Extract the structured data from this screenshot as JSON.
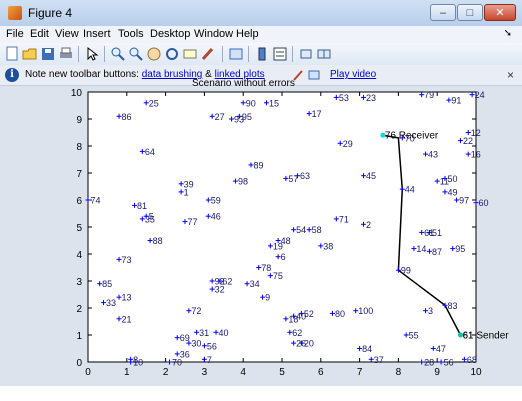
{
  "window": {
    "title": "Figure 4",
    "min_glyph": "–",
    "max_glyph": "□",
    "close_glyph": "✕"
  },
  "menu": [
    "File",
    "Edit",
    "View",
    "Insert",
    "Tools",
    "Desktop",
    "Window",
    "Help"
  ],
  "menu_arrow": "➘",
  "toolbar_icons": [
    "new-figure-icon",
    "open-icon",
    "save-icon",
    "print-icon",
    "pointer-icon",
    "zoom-in-icon",
    "zoom-out-icon",
    "pan-icon",
    "rotate-icon",
    "data-cursor-icon",
    "brush-icon",
    "link-plot-icon",
    "colorbar-icon",
    "legend-icon",
    "hide-plot-tools-icon",
    "show-plot-tools-icon"
  ],
  "notebar": {
    "prefix": "Note new toolbar buttons:",
    "link1": "data brushing",
    "amp": "&",
    "link2": "linked plots",
    "link3": "Play video",
    "close": "×"
  },
  "plot_title": "Scenario without errors",
  "chart_data": {
    "type": "scatter",
    "xlim": [
      0,
      10
    ],
    "ylim": [
      0,
      10
    ],
    "xticks": [
      "0",
      "1",
      "2",
      "3",
      "4",
      "5",
      "6",
      "7",
      "8",
      "9",
      "10"
    ],
    "yticks": [
      "0",
      "1",
      "2",
      "3",
      "4",
      "5",
      "6",
      "7",
      "8",
      "9",
      "10"
    ],
    "grid": false,
    "marker_color": "#0000ff",
    "nodes": [
      {
        "id": "24",
        "x": 9.9,
        "y": 9.9
      },
      {
        "id": "79",
        "x": 8.6,
        "y": 9.9
      },
      {
        "id": "91",
        "x": 9.3,
        "y": 9.7
      },
      {
        "id": "23",
        "x": 7.1,
        "y": 9.8
      },
      {
        "id": "53",
        "x": 6.4,
        "y": 9.8
      },
      {
        "id": "25",
        "x": 1.5,
        "y": 9.6
      },
      {
        "id": "90",
        "x": 4.0,
        "y": 9.6
      },
      {
        "id": "15",
        "x": 4.6,
        "y": 9.6
      },
      {
        "id": "86",
        "x": 0.8,
        "y": 9.1
      },
      {
        "id": "27",
        "x": 3.2,
        "y": 9.1
      },
      {
        "id": "95",
        "x": 3.9,
        "y": 9.1
      },
      {
        "id": "93",
        "x": 3.7,
        "y": 9.0
      },
      {
        "id": "17",
        "x": 5.7,
        "y": 9.2
      },
      {
        "id": "12",
        "x": 9.8,
        "y": 8.5
      },
      {
        "id": "70",
        "x": 8.1,
        "y": 8.3
      },
      {
        "id": "22",
        "x": 9.6,
        "y": 8.2
      },
      {
        "id": "29",
        "x": 6.5,
        "y": 8.1
      },
      {
        "id": "64",
        "x": 1.4,
        "y": 7.8
      },
      {
        "id": "43",
        "x": 8.7,
        "y": 7.7
      },
      {
        "id": "16",
        "x": 9.8,
        "y": 7.7
      },
      {
        "id": "89",
        "x": 4.2,
        "y": 7.3
      },
      {
        "id": "45",
        "x": 7.1,
        "y": 6.9
      },
      {
        "id": "57",
        "x": 5.1,
        "y": 6.8
      },
      {
        "id": "63",
        "x": 5.4,
        "y": 6.9
      },
      {
        "id": "98",
        "x": 3.8,
        "y": 6.7
      },
      {
        "id": "50",
        "x": 9.2,
        "y": 6.8
      },
      {
        "id": "11",
        "x": 9.0,
        "y": 6.7
      },
      {
        "id": "39",
        "x": 2.4,
        "y": 6.6
      },
      {
        "id": "1",
        "x": 2.4,
        "y": 6.3
      },
      {
        "id": "44",
        "x": 8.1,
        "y": 6.4
      },
      {
        "id": "49",
        "x": 9.2,
        "y": 6.3
      },
      {
        "id": "97",
        "x": 9.5,
        "y": 6.0
      },
      {
        "id": "60",
        "x": 10.0,
        "y": 5.9
      },
      {
        "id": "74",
        "x": 0.0,
        "y": 6.0
      },
      {
        "id": "81",
        "x": 1.2,
        "y": 5.8
      },
      {
        "id": "59",
        "x": 3.1,
        "y": 6.0
      },
      {
        "id": "35",
        "x": 1.4,
        "y": 5.3
      },
      {
        "id": "5",
        "x": 1.5,
        "y": 5.4
      },
      {
        "id": "77",
        "x": 2.5,
        "y": 5.2
      },
      {
        "id": "46",
        "x": 3.1,
        "y": 5.4
      },
      {
        "id": "71",
        "x": 6.4,
        "y": 5.3
      },
      {
        "id": "2",
        "x": 7.1,
        "y": 5.1
      },
      {
        "id": "54",
        "x": 5.3,
        "y": 4.9
      },
      {
        "id": "58",
        "x": 5.7,
        "y": 4.9
      },
      {
        "id": "61",
        "x": 8.6,
        "y": 4.8
      },
      {
        "id": "51",
        "x": 8.8,
        "y": 4.8
      },
      {
        "id": "88",
        "x": 1.6,
        "y": 4.5
      },
      {
        "id": "48",
        "x": 4.9,
        "y": 4.5
      },
      {
        "id": "19",
        "x": 4.7,
        "y": 4.3
      },
      {
        "id": "38",
        "x": 6.0,
        "y": 4.3
      },
      {
        "id": "14",
        "x": 8.4,
        "y": 4.2
      },
      {
        "id": "87",
        "x": 8.8,
        "y": 4.1
      },
      {
        "id": "95b",
        "label": "95",
        "x": 9.4,
        "y": 4.2
      },
      {
        "id": "6",
        "x": 4.9,
        "y": 3.9
      },
      {
        "id": "73",
        "x": 0.8,
        "y": 3.8
      },
      {
        "id": "78",
        "x": 4.4,
        "y": 3.5
      },
      {
        "id": "99",
        "x": 8.0,
        "y": 3.4
      },
      {
        "id": "75",
        "x": 4.7,
        "y": 3.2
      },
      {
        "id": "85",
        "x": 0.3,
        "y": 2.9
      },
      {
        "id": "92",
        "x": 3.2,
        "y": 3.0
      },
      {
        "id": "62",
        "x": 3.4,
        "y": 3.0
      },
      {
        "id": "34",
        "x": 4.1,
        "y": 2.9
      },
      {
        "id": "32",
        "x": 3.2,
        "y": 2.7
      },
      {
        "id": "13",
        "x": 0.8,
        "y": 2.4
      },
      {
        "id": "9",
        "x": 4.5,
        "y": 2.4
      },
      {
        "id": "33",
        "x": 0.4,
        "y": 2.2
      },
      {
        "id": "72",
        "x": 2.6,
        "y": 1.9
      },
      {
        "id": "83",
        "x": 9.2,
        "y": 2.1
      },
      {
        "id": "100",
        "x": 6.9,
        "y": 1.9
      },
      {
        "id": "3",
        "x": 8.7,
        "y": 1.9
      },
      {
        "id": "80",
        "x": 6.3,
        "y": 1.8
      },
      {
        "id": "52",
        "x": 5.5,
        "y": 1.8
      },
      {
        "id": "18",
        "x": 5.1,
        "y": 1.6
      },
      {
        "id": "40",
        "x": 5.3,
        "y": 1.7
      },
      {
        "id": "21",
        "x": 0.8,
        "y": 1.6
      },
      {
        "id": "31",
        "x": 2.8,
        "y": 1.1
      },
      {
        "id": "40b",
        "label": "40",
        "x": 3.3,
        "y": 1.1
      },
      {
        "id": "62b",
        "label": "62",
        "x": 5.2,
        "y": 1.1
      },
      {
        "id": "61b",
        "label": "61",
        "x": 9.6,
        "y": 1.0
      },
      {
        "id": "55",
        "x": 8.2,
        "y": 1.0
      },
      {
        "id": "69",
        "x": 2.3,
        "y": 0.9
      },
      {
        "id": "30",
        "x": 2.6,
        "y": 0.7
      },
      {
        "id": "56",
        "x": 3.0,
        "y": 0.6
      },
      {
        "id": "26",
        "x": 5.3,
        "y": 0.7
      },
      {
        "id": "20",
        "x": 5.5,
        "y": 0.7
      },
      {
        "id": "84",
        "x": 7.0,
        "y": 0.5
      },
      {
        "id": "47",
        "x": 8.9,
        "y": 0.5
      },
      {
        "id": "36",
        "x": 2.3,
        "y": 0.3
      },
      {
        "id": "7",
        "x": 3.0,
        "y": 0.1
      },
      {
        "id": "8",
        "x": 1.1,
        "y": 0.1
      },
      {
        "id": "37",
        "x": 7.3,
        "y": 0.1
      },
      {
        "id": "28",
        "x": 8.6,
        "y": 0.0
      },
      {
        "id": "56b",
        "label": "56",
        "x": 9.1,
        "y": 0.0
      },
      {
        "id": "68",
        "x": 9.7,
        "y": 0.1
      },
      {
        "id": "70b",
        "label": "70",
        "x": 2.1,
        "y": 0.0
      },
      {
        "id": "10",
        "x": 1.1,
        "y": 0.0
      }
    ],
    "route": {
      "color": "#000000",
      "points": [
        [
          7.6,
          8.4
        ],
        [
          8.0,
          8.3
        ],
        [
          8.1,
          6.4
        ],
        [
          8.0,
          3.4
        ],
        [
          9.2,
          2.1
        ],
        [
          9.6,
          1.0
        ]
      ]
    },
    "receiver": {
      "label": "76 Receiver",
      "x": 7.6,
      "y": 8.4,
      "color": "#00e0e0"
    },
    "sender": {
      "label": "61 Sender",
      "x": 9.6,
      "y": 1.0,
      "color": "#00c8a0"
    }
  }
}
